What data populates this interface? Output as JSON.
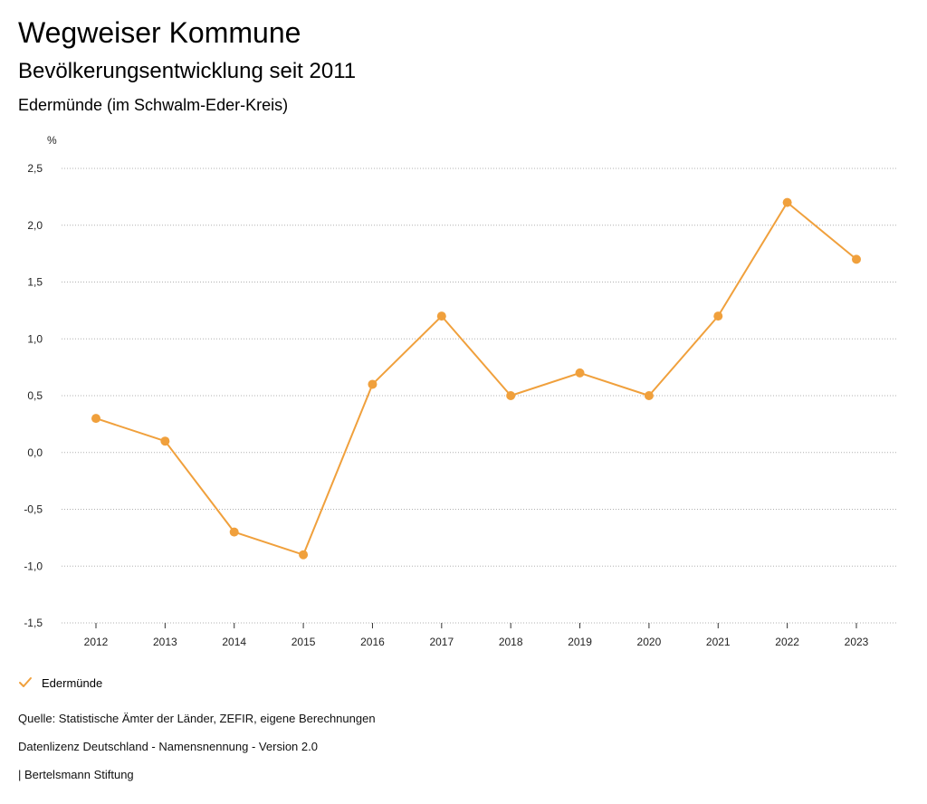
{
  "header": {
    "title": "Wegweiser Kommune",
    "subtitle": "Bevölkerungsentwicklung seit 2011",
    "region": "Edermünde (im Schwalm-Eder-Kreis)"
  },
  "colors": {
    "series": "#f0a03c",
    "grid": "#b0b0b0",
    "axis": "#333333"
  },
  "chart_data": {
    "type": "line",
    "title": "Bevölkerungsentwicklung seit 2011",
    "xlabel": "",
    "ylabel": "%",
    "categories": [
      "2012",
      "2013",
      "2014",
      "2015",
      "2016",
      "2017",
      "2018",
      "2019",
      "2020",
      "2021",
      "2022",
      "2023"
    ],
    "series": [
      {
        "name": "Edermünde",
        "values": [
          0.3,
          0.1,
          -0.7,
          -0.9,
          0.6,
          1.2,
          0.5,
          0.7,
          0.5,
          1.2,
          2.2,
          1.7
        ]
      }
    ],
    "ylim": [
      -1.5,
      2.5
    ],
    "yticks": [
      2.5,
      2.0,
      1.5,
      1.0,
      0.5,
      0.0,
      -0.5,
      -1.0,
      -1.5
    ],
    "ytick_labels": [
      "2,5",
      "2,0",
      "1,5",
      "1,0",
      "0,5",
      "0,0",
      "-0,5",
      "-1,0",
      "-1,5"
    ],
    "grid": true,
    "legend": "bottom-left"
  },
  "legend": {
    "label": "Edermünde"
  },
  "footer": {
    "source": "Quelle: Statistische Ämter der Länder, ZEFIR, eigene Berechnungen",
    "license": "Datenlizenz Deutschland - Namensnennung - Version 2.0",
    "publisher": "| Bertelsmann Stiftung"
  }
}
